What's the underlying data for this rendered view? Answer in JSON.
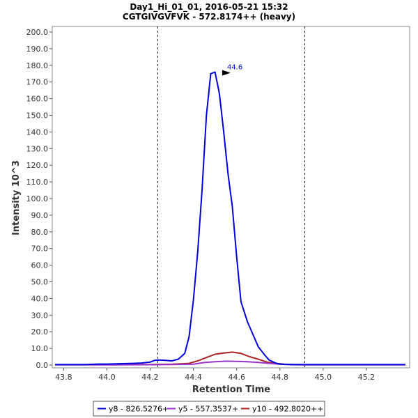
{
  "chart_data": {
    "type": "line",
    "title": "Day1_Hi_01_01, 2016-05-21 15:32",
    "subtitle": "CGTGIVGVFVK - 572.8174++ (heavy)",
    "xlabel": "Retention Time",
    "ylabel": "Intensity 10^3",
    "xlim": [
      43.76,
      45.4
    ],
    "ylim": [
      0,
      200
    ],
    "x_ticks": [
      "43.8",
      "44.0",
      "44.2",
      "44.4",
      "44.6",
      "44.8",
      "45.0",
      "45.2"
    ],
    "x_tick_values": [
      43.8,
      44.0,
      44.2,
      44.4,
      44.6,
      44.8,
      45.0,
      45.2
    ],
    "y_ticks": [
      "0.0",
      "10.0",
      "20.0",
      "30.0",
      "40.0",
      "50.0",
      "60.0",
      "70.0",
      "80.0",
      "90.0",
      "100.0",
      "110.0",
      "120.0",
      "130.0",
      "140.0",
      "150.0",
      "160.0",
      "170.0",
      "180.0",
      "190.0",
      "200.0"
    ],
    "y_tick_values": [
      0,
      10,
      20,
      30,
      40,
      50,
      60,
      70,
      80,
      90,
      100,
      110,
      120,
      130,
      140,
      150,
      160,
      170,
      180,
      190,
      200
    ],
    "grid": false,
    "vertical_lines": [
      44.235,
      44.915
    ],
    "legend_position": "bottom",
    "peak_annotation": {
      "text": "44.6",
      "x": 44.575,
      "y": 175.5,
      "color": "#0000cc"
    },
    "series": [
      {
        "name": "y8 - 826.5276+",
        "color": "#0000dd",
        "x": [
          43.76,
          43.8,
          43.9,
          43.96,
          44.0,
          44.06,
          44.12,
          44.16,
          44.2,
          44.22,
          44.24,
          44.27,
          44.3,
          44.33,
          44.36,
          44.38,
          44.4,
          44.42,
          44.44,
          44.46,
          44.48,
          44.5,
          44.52,
          44.54,
          44.56,
          44.58,
          44.6,
          44.62,
          44.65,
          44.68,
          44.7,
          44.73,
          44.75,
          44.78,
          44.8,
          44.83,
          44.86,
          44.88,
          44.9,
          44.92,
          44.95,
          45.0,
          45.1,
          45.2,
          45.3,
          45.38
        ],
        "y": [
          0.3,
          0.3,
          0.3,
          0.6,
          0.6,
          0.8,
          1.0,
          1.2,
          1.8,
          2.8,
          3.0,
          2.8,
          2.5,
          3.5,
          7.0,
          17.0,
          39.0,
          68.0,
          105.0,
          150.0,
          175.0,
          176.0,
          163.0,
          140.0,
          115.0,
          95.0,
          65.0,
          38.0,
          26.0,
          17.0,
          11.0,
          6.0,
          3.0,
          1.2,
          0.6,
          0.4,
          0.3,
          0.3,
          0.3,
          0.3,
          0.3,
          0.3,
          0.3,
          0.3,
          0.3,
          0.3
        ]
      },
      {
        "name": "y5 - 557.3537+",
        "color": "#9933cc",
        "x": [
          43.76,
          44.0,
          44.2,
          44.3,
          44.4,
          44.45,
          44.5,
          44.55,
          44.6,
          44.65,
          44.7,
          44.75,
          44.8,
          44.85,
          44.9,
          45.0,
          45.38
        ],
        "y": [
          0.1,
          0.1,
          0.2,
          0.3,
          0.5,
          1.5,
          2.0,
          2.3,
          2.2,
          2.0,
          1.6,
          1.0,
          0.5,
          0.2,
          0.1,
          0.1,
          0.1
        ]
      },
      {
        "name": "y10 - 492.8020++",
        "color": "#aa2222",
        "x": [
          43.76,
          44.0,
          44.2,
          44.3,
          44.38,
          44.42,
          44.46,
          44.5,
          44.54,
          44.58,
          44.62,
          44.66,
          44.7,
          44.74,
          44.78,
          44.82,
          44.86,
          44.9,
          45.0,
          45.38
        ],
        "y": [
          0.2,
          0.2,
          0.3,
          0.5,
          1.0,
          2.5,
          4.5,
          6.5,
          7.2,
          7.8,
          7.0,
          5.0,
          3.5,
          1.8,
          0.9,
          0.5,
          0.3,
          0.2,
          0.2,
          0.2
        ]
      }
    ]
  }
}
